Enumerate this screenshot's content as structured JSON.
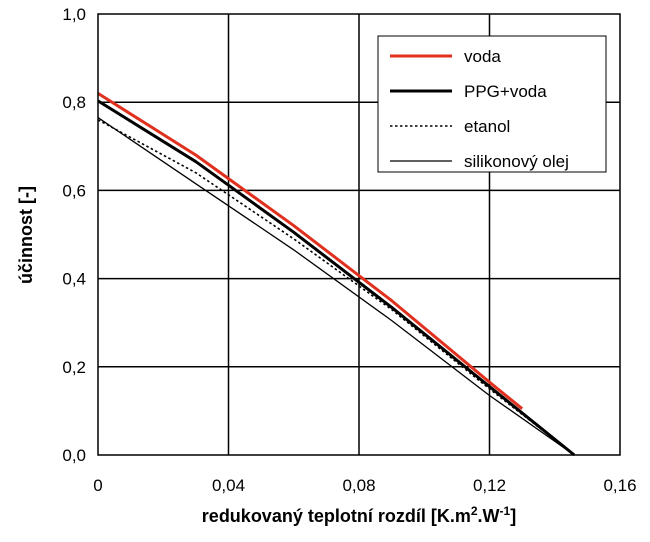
{
  "chart_data": {
    "type": "line",
    "title": "",
    "xlabel_main": "redukovaný teplotní rozdíl [K.m",
    "xlabel_sup1": "2",
    "xlabel_mid": ".W",
    "xlabel_sup2": "-1",
    "xlabel_end": "]",
    "ylabel": "účinnost [-]",
    "xlim": [
      0,
      0.16
    ],
    "ylim": [
      0,
      1.0
    ],
    "x_ticks": [
      "0",
      "0,04",
      "0,08",
      "0,12",
      "0,16"
    ],
    "y_ticks": [
      "0,0",
      "0,2",
      "0,4",
      "0,6",
      "0,8",
      "1,0"
    ],
    "x_tick_values": [
      0,
      0.04,
      0.08,
      0.12,
      0.16
    ],
    "y_tick_values": [
      0,
      0.2,
      0.4,
      0.6,
      0.8,
      1.0
    ],
    "grid": true,
    "legend_position": "top-right",
    "series": [
      {
        "name": "voda",
        "color": "#e0301e",
        "style": "solid-thick",
        "x": [
          0,
          0.03,
          0.06,
          0.09,
          0.12,
          0.13
        ],
        "y": [
          0.82,
          0.68,
          0.52,
          0.35,
          0.165,
          0.105
        ]
      },
      {
        "name": "PPG+voda",
        "color": "#000000",
        "style": "solid-thick",
        "x": [
          0,
          0.03,
          0.06,
          0.09,
          0.12,
          0.146
        ],
        "y": [
          0.803,
          0.665,
          0.505,
          0.335,
          0.155,
          0.0
        ]
      },
      {
        "name": "etanol",
        "color": "#000000",
        "style": "dotted",
        "x": [
          0,
          0.03,
          0.06,
          0.09,
          0.12,
          0.146
        ],
        "y": [
          0.76,
          0.64,
          0.49,
          0.33,
          0.15,
          0.0
        ]
      },
      {
        "name": "silikonový olej",
        "color": "#000000",
        "style": "solid-thin",
        "x": [
          0,
          0.03,
          0.06,
          0.09,
          0.12,
          0.146
        ],
        "y": [
          0.765,
          0.615,
          0.465,
          0.305,
          0.135,
          0.0
        ]
      }
    ]
  }
}
